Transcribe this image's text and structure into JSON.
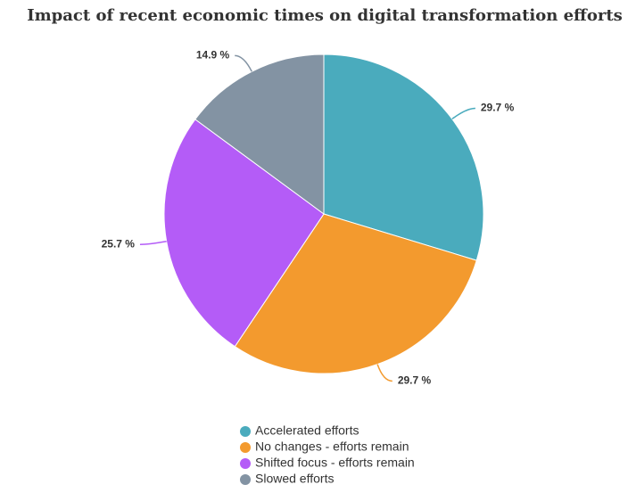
{
  "chart_data": {
    "type": "pie",
    "title": "Impact of recent economic times on digital transformation efforts",
    "categories": [
      "Accelerated efforts",
      "No changes - efforts remain",
      "Shifted focus - efforts remain",
      "Slowed efforts"
    ],
    "values": [
      29.7,
      29.7,
      25.7,
      14.9
    ],
    "value_labels": [
      "29.7 %",
      "29.7 %",
      "25.7 %",
      "14.9 %"
    ],
    "colors": [
      "#4aabbd",
      "#f39a2e",
      "#b45cf7",
      "#8393a3"
    ],
    "legend": "bottom"
  }
}
